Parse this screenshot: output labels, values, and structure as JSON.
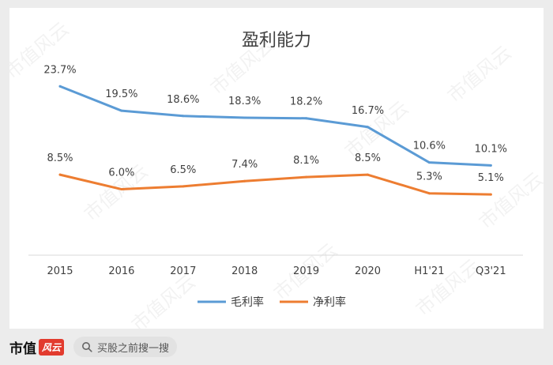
{
  "chart_data": {
    "type": "line",
    "title": "盈利能力",
    "categories": [
      "2015",
      "2016",
      "2017",
      "2018",
      "2019",
      "2020",
      "H1'21",
      "Q3'21"
    ],
    "series": [
      {
        "name": "毛利率",
        "values": [
          23.7,
          19.5,
          18.6,
          18.3,
          18.2,
          16.7,
          10.6,
          10.1
        ],
        "labels": [
          "23.7%",
          "19.5%",
          "18.6%",
          "18.3%",
          "18.2%",
          "16.7%",
          "10.6%",
          "10.1%"
        ],
        "color": "#5b9bd5"
      },
      {
        "name": "净利率",
        "values": [
          8.5,
          6.0,
          6.5,
          7.4,
          8.1,
          8.5,
          5.3,
          5.1
        ],
        "labels": [
          "8.5%",
          "6.0%",
          "6.5%",
          "7.4%",
          "8.1%",
          "8.5%",
          "5.3%",
          "5.1%"
        ],
        "color": "#ed7d31"
      }
    ],
    "xlabel": "",
    "ylabel": "",
    "legend": "bottom",
    "grid": false
  },
  "watermark": {
    "text": "市值风云"
  },
  "footer": {
    "brand": "市值",
    "brand_badge": "风云",
    "search_text": "买股之前搜一搜",
    "search_icon": "search-icon"
  },
  "colors": {
    "background": "#ececec",
    "card": "#ffffff",
    "axis": "#d9d9d9",
    "text": "#404040"
  }
}
